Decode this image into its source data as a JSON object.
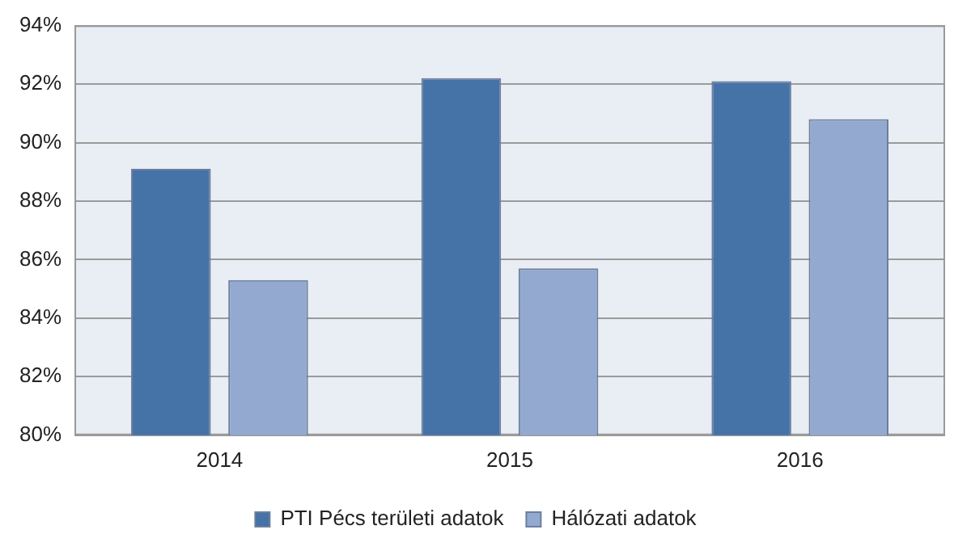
{
  "chart_data": {
    "type": "bar",
    "categories": [
      "2014",
      "2015",
      "2016"
    ],
    "series": [
      {
        "name": "PTI Pécs területi adatok",
        "color": "#4572a7",
        "values": [
          89.1,
          92.2,
          92.1
        ]
      },
      {
        "name": "Hálózati adatok",
        "color": "#93a9cf",
        "values": [
          85.3,
          85.7,
          90.8
        ]
      }
    ],
    "ylim": [
      80,
      94
    ],
    "yticks": [
      {
        "value": 80,
        "label": "80%"
      },
      {
        "value": 82,
        "label": "82%"
      },
      {
        "value": 84,
        "label": "84%"
      },
      {
        "value": 86,
        "label": "86%"
      },
      {
        "value": 88,
        "label": "88%"
      },
      {
        "value": 90,
        "label": "90%"
      },
      {
        "value": 92,
        "label": "92%"
      },
      {
        "value": 94,
        "label": "94%"
      }
    ],
    "grid": "y",
    "legend": "bottom"
  }
}
